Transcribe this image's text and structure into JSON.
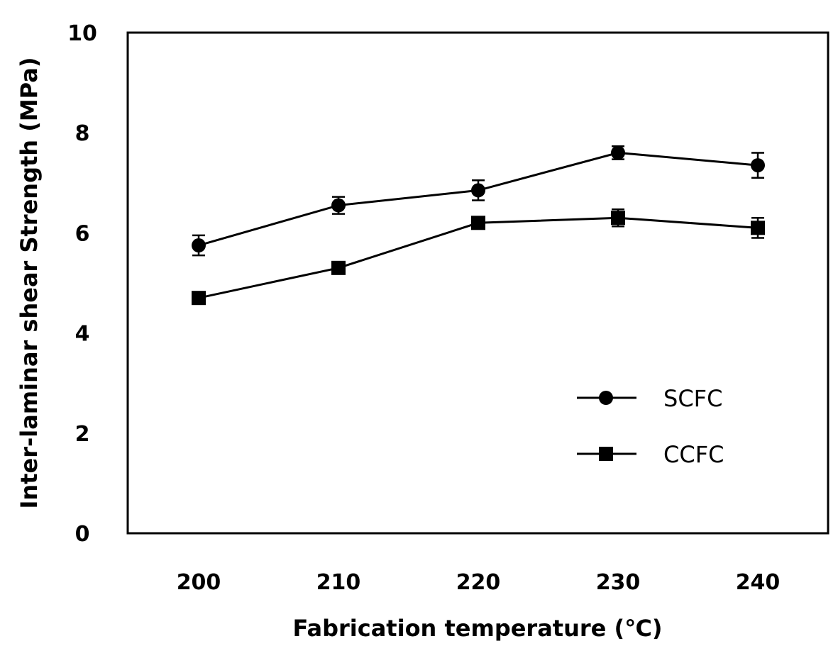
{
  "chart_data": {
    "type": "line",
    "title": "",
    "xlabel": "Fabrication temperature (℃)",
    "ylabel": "Inter-laminar shear Strength (MPa)",
    "x": [
      200,
      210,
      220,
      230,
      240
    ],
    "x_tick_labels": [
      "200",
      "210",
      "220",
      "230",
      "240"
    ],
    "ylim": [
      0,
      10
    ],
    "y_ticks": [
      0,
      2,
      4,
      6,
      8,
      10
    ],
    "y_tick_labels": [
      "0",
      "2",
      "4",
      "6",
      "8",
      "10"
    ],
    "grid": false,
    "legend_position": "bottom-right",
    "series": [
      {
        "name": "SCFC",
        "marker": "circle",
        "color": "#000000",
        "values": [
          5.75,
          6.55,
          6.85,
          7.6,
          7.35
        ],
        "error": [
          0.2,
          0.17,
          0.2,
          0.13,
          0.25
        ]
      },
      {
        "name": "CCFC",
        "marker": "square",
        "color": "#000000",
        "values": [
          4.7,
          5.3,
          6.2,
          6.3,
          6.1
        ],
        "error": [
          0.07,
          0.07,
          0.1,
          0.17,
          0.2
        ]
      }
    ]
  }
}
